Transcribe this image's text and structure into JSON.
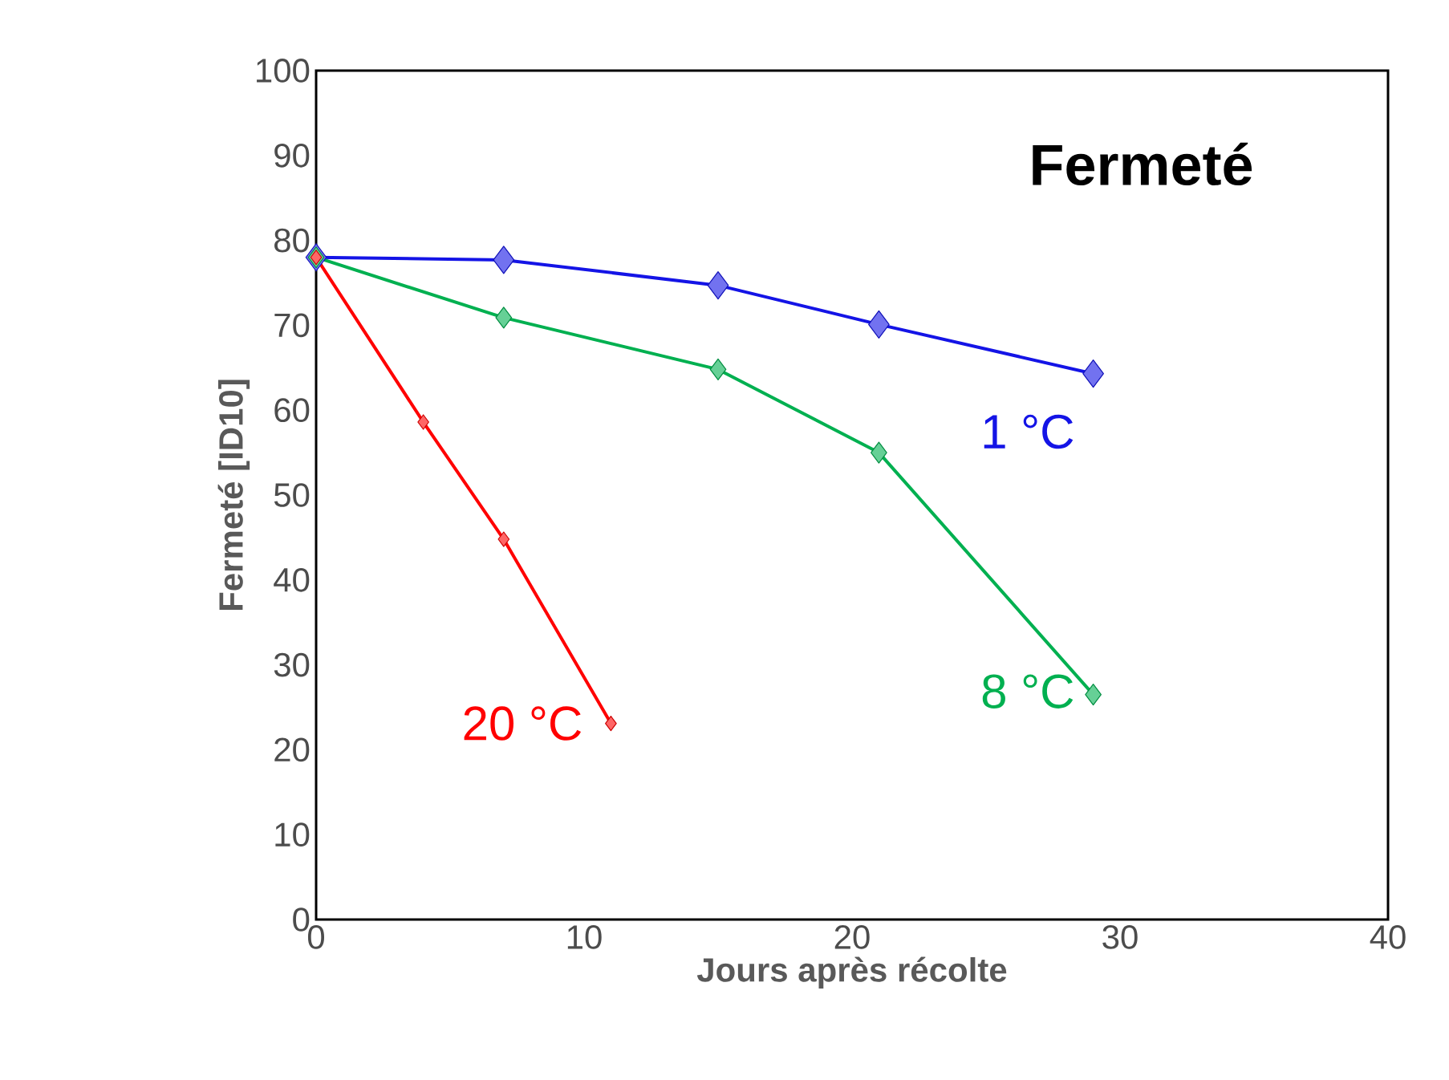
{
  "chart_data": {
    "type": "line",
    "title": "Fermeté",
    "xlabel": "Jours après récolte",
    "ylabel": "Fermeté [ID10]",
    "xlim": [
      0,
      40
    ],
    "xticks": [
      0,
      10,
      20,
      30,
      40
    ],
    "ylim": [
      0,
      100
    ],
    "yticks": [
      0,
      10,
      20,
      30,
      40,
      50,
      60,
      70,
      80,
      90,
      100
    ],
    "grid": false,
    "legend": false,
    "marker": "diamond",
    "line_style": "solid",
    "series": [
      {
        "name": "1 °C",
        "color": "#1414e6",
        "x": [
          0,
          7,
          15,
          21,
          29
        ],
        "values": [
          78,
          77.7,
          74.7,
          70.1,
          64.3
        ]
      },
      {
        "name": "8 °C",
        "color": "#00b050",
        "x": [
          0,
          7,
          15,
          21,
          29
        ],
        "values": [
          78,
          70.9,
          64.8,
          55,
          26.5
        ]
      },
      {
        "name": "20 °C",
        "color": "#ff0000",
        "x": [
          0,
          4,
          7,
          11
        ],
        "values": [
          78,
          58.6,
          44.8,
          23.1
        ]
      }
    ]
  }
}
